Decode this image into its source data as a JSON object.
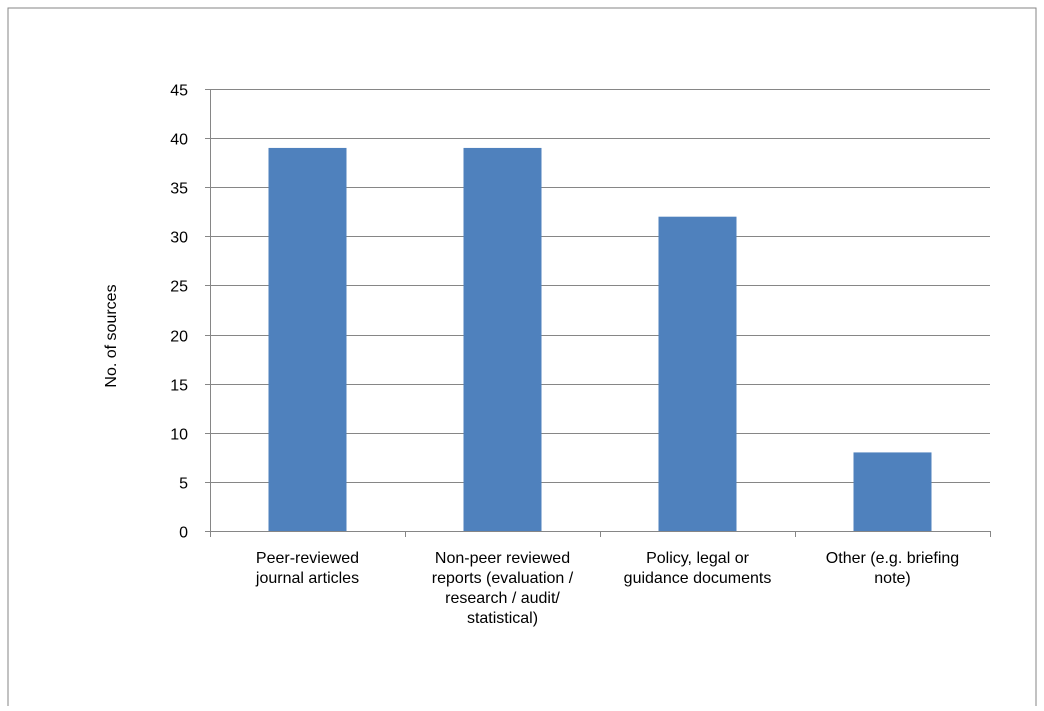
{
  "colors": {
    "bar": "#4f81bd",
    "gridline": "#868686",
    "axis": "#868686",
    "frame": "#868686",
    "text": "#000000"
  },
  "chart_data": {
    "type": "bar",
    "title": "",
    "xlabel": "",
    "ylabel": "No. of sources",
    "ylim": [
      0,
      45
    ],
    "ytick_step": 5,
    "yticks": [
      "0",
      "5",
      "10",
      "15",
      "20",
      "25",
      "30",
      "35",
      "40",
      "45"
    ],
    "grid": true,
    "legend": "none",
    "categories": [
      [
        "Peer-reviewed",
        "journal articles"
      ],
      [
        "Non-peer reviewed",
        "reports (evaluation /",
        "research / audit/",
        "statistical)"
      ],
      [
        "Policy, legal or",
        "guidance documents"
      ],
      [
        "Other (e.g. briefing",
        "note)"
      ]
    ],
    "values": [
      39,
      39,
      32,
      8
    ]
  }
}
